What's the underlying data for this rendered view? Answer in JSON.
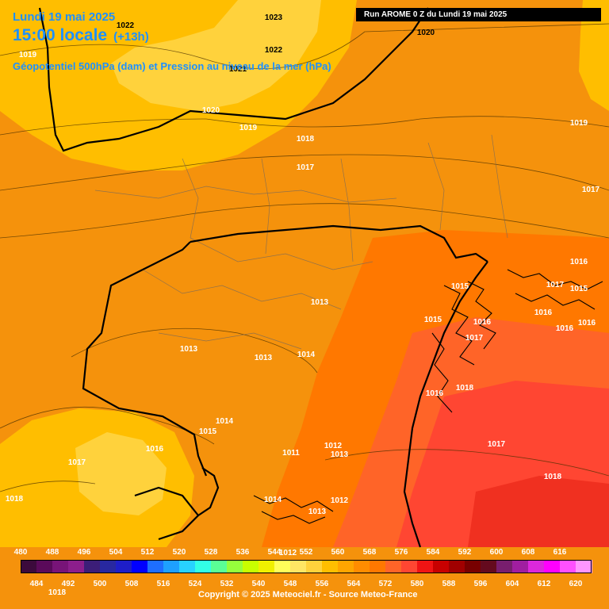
{
  "header": {
    "date": "Lundi 19 mai 2025",
    "local_time": "15:00 locale",
    "step": "(+13h)",
    "title": "Géopotentiel 500hPa (dam) et Pression au niveau de la mer (hPa)"
  },
  "run_info": "Run AROME 0 Z du Lundi 19 mai 2025",
  "copyright": "Copyright © 2025 Meteociel.fr - Source Meteo-France",
  "legend": {
    "top_ticks": [
      "480",
      "488",
      "496",
      "504",
      "512",
      "520",
      "528",
      "536",
      "544",
      "552",
      "560",
      "568",
      "576",
      "584",
      "592",
      "600",
      "608",
      "616"
    ],
    "bottom_ticks": [
      "484",
      "492",
      "500",
      "508",
      "516",
      "524",
      "532",
      "540",
      "548",
      "556",
      "564",
      "572",
      "580",
      "588",
      "596",
      "604",
      "612",
      "620"
    ],
    "colors": [
      "#3c0a3c",
      "#5a0a5a",
      "#781478",
      "#8c1e8c",
      "#3c1e78",
      "#2828a0",
      "#1e1ec8",
      "#0000ff",
      "#1e6eff",
      "#1ea0ff",
      "#28d2ff",
      "#32ffe6",
      "#5aff96",
      "#96ff3c",
      "#c8ff00",
      "#f0f000",
      "#ffff5a",
      "#ffe664",
      "#ffd23c",
      "#ffbe00",
      "#ffa500",
      "#ff8c00",
      "#ff7800",
      "#ff6428",
      "#ff4632",
      "#f01414",
      "#c80000",
      "#a00000",
      "#780000",
      "#640a1e",
      "#781e6e",
      "#a01ea0",
      "#dc28dc",
      "#ff00ff",
      "#ff50ff",
      "#ff96ff"
    ]
  },
  "pressure_labels": [
    {
      "text": "1023",
      "w": false
    },
    {
      "text": "1022",
      "w": false
    },
    {
      "text": "1022",
      "w": false
    },
    {
      "text": "1021",
      "w": false
    },
    {
      "text": "1019",
      "w": true
    },
    {
      "text": "1020",
      "w": true
    },
    {
      "text": "1018",
      "w": true
    },
    {
      "text": "1020",
      "w": false
    },
    {
      "text": "1019",
      "w": true
    },
    {
      "text": "1019",
      "w": true
    },
    {
      "text": "1018",
      "w": true
    },
    {
      "text": "1017",
      "w": true
    },
    {
      "text": "1017",
      "w": true
    },
    {
      "text": "1016",
      "w": true
    },
    {
      "text": "1017",
      "w": true
    },
    {
      "text": "1015",
      "w": true
    },
    {
      "text": "1015",
      "w": true
    },
    {
      "text": "1016",
      "w": true
    },
    {
      "text": "1016",
      "w": true
    },
    {
      "text": "1016",
      "w": true
    },
    {
      "text": "1013",
      "w": true
    },
    {
      "text": "1013",
      "w": true
    },
    {
      "text": "1013",
      "w": true
    },
    {
      "text": "1014",
      "w": true
    },
    {
      "text": "1015",
      "w": true
    },
    {
      "text": "1014",
      "w": true
    },
    {
      "text": "1015",
      "w": true
    },
    {
      "text": "1016",
      "w": true
    },
    {
      "text": "1017",
      "w": true
    },
    {
      "text": "1016",
      "w": true
    },
    {
      "text": "1018",
      "w": true
    },
    {
      "text": "1017",
      "w": true
    },
    {
      "text": "1011",
      "w": true
    },
    {
      "text": "1012",
      "w": true
    },
    {
      "text": "1013",
      "w": true
    },
    {
      "text": "1017",
      "w": true
    },
    {
      "text": "1018",
      "w": true
    },
    {
      "text": "1013",
      "w": true
    },
    {
      "text": "1014",
      "w": true
    },
    {
      "text": "1012",
      "w": true
    },
    {
      "text": "1012",
      "w": true
    },
    {
      "text": "1016",
      "w": true
    },
    {
      "text": "1018",
      "w": true
    }
  ]
}
